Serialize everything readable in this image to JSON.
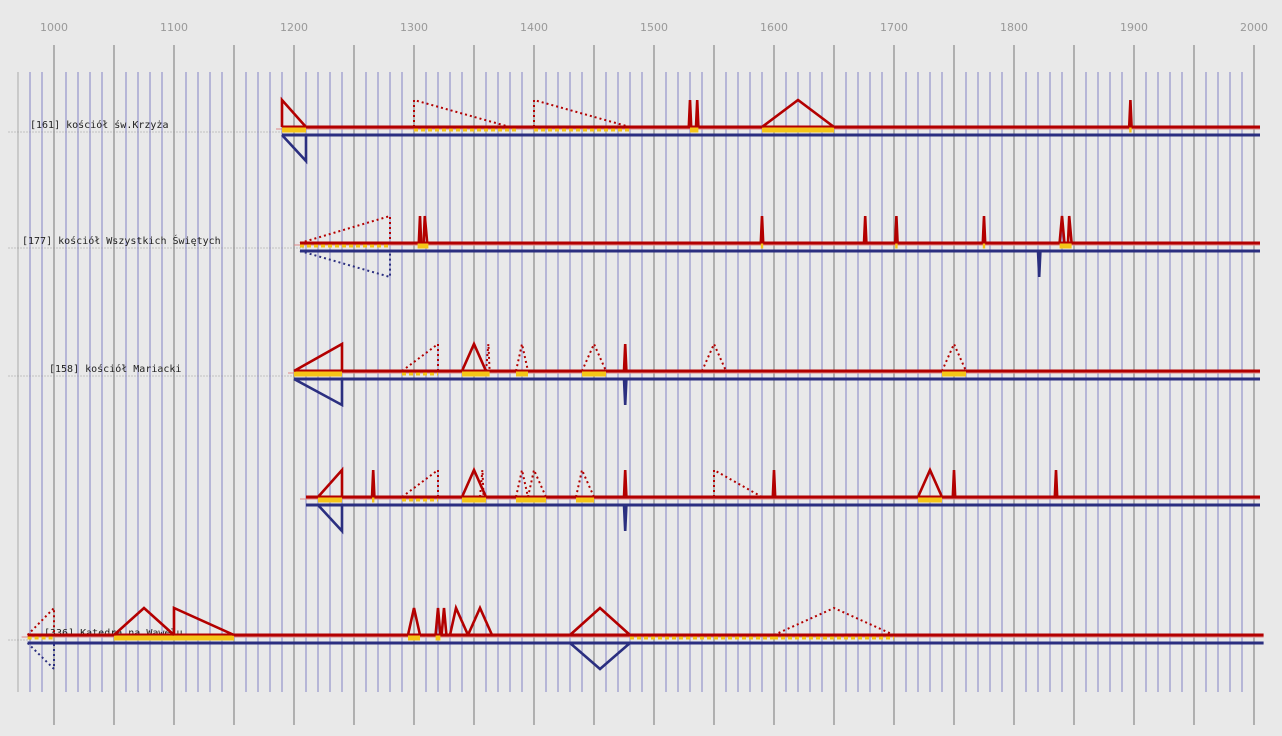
{
  "chart_data": {
    "type": "timeline",
    "x_axis": {
      "tick_labels": [
        "1000",
        "1100",
        "1200",
        "1300",
        "1400",
        "1500",
        "1600",
        "1700",
        "1800",
        "1900",
        "2000"
      ],
      "range": [
        975,
        2008
      ],
      "minor_tick_step": 10
    },
    "colors": {
      "background": "#e9e9e9",
      "upper_series": "#b30000",
      "lower_series": "#2b2f80",
      "fill_band": "#f5c518",
      "minor_grid": "#3333aa",
      "major_grid": "#666666"
    },
    "rows": [
      {
        "label": "[161] kościół św.Krzyża",
        "start": 1190,
        "end": 2005,
        "upper": [
          [
            1190,
            1190,
            1210
          ],
          [
            1300,
            1300,
            1380,
            "dotted"
          ],
          [
            1400,
            1400,
            1480,
            "dotted"
          ],
          [
            1529,
            1530,
            1531
          ],
          [
            1535,
            1536,
            1537
          ],
          [
            1590,
            1620,
            1650
          ],
          [
            1896,
            1897,
            1898
          ]
        ],
        "bands": [
          [
            1190,
            1210
          ],
          [
            1300,
            1385,
            "dotted"
          ],
          [
            1400,
            1480,
            "dotted"
          ],
          [
            1530,
            1537
          ],
          [
            1590,
            1650
          ],
          [
            1896,
            1898
          ]
        ],
        "lower": [
          [
            1190,
            1210,
            1210
          ]
        ]
      },
      {
        "label": "[177] kościół Wszystkich Świętych",
        "start": 1205,
        "end": 2005,
        "upper": [
          [
            1205,
            1280,
            1280,
            "dotted"
          ],
          [
            1304,
            1305,
            1306
          ],
          [
            1308,
            1309,
            1311
          ],
          [
            1589,
            1590,
            1591
          ],
          [
            1675,
            1676,
            1677
          ],
          [
            1701,
            1702,
            1703
          ],
          [
            1774,
            1775,
            1776
          ],
          [
            1838,
            1840,
            1842
          ],
          [
            1845,
            1846,
            1848
          ]
        ],
        "bands": [
          [
            1205,
            1280,
            "dotted"
          ],
          [
            1303,
            1312
          ],
          [
            1589,
            1591
          ],
          [
            1701,
            1703
          ],
          [
            1774,
            1776
          ],
          [
            1838,
            1848
          ]
        ],
        "lower": [
          [
            1205,
            1280,
            1280,
            "dotted"
          ],
          [
            1820,
            1821,
            1822
          ]
        ]
      },
      {
        "label": "[158] kościół Mariacki",
        "start": 1200,
        "end": 2005,
        "upper": [
          [
            1200,
            1240,
            1240
          ],
          [
            1290,
            1320,
            1320,
            "dotted"
          ],
          [
            1340,
            1350,
            1360
          ],
          [
            1360,
            1362,
            1363,
            "dotted"
          ],
          [
            1385,
            1390,
            1395,
            "dotted"
          ],
          [
            1440,
            1450,
            1460,
            "dotted"
          ],
          [
            1475,
            1476,
            1477
          ],
          [
            1540,
            1550,
            1560,
            "dotted"
          ],
          [
            1740,
            1750,
            1760,
            "dotted"
          ]
        ],
        "bands": [
          [
            1200,
            1240
          ],
          [
            1290,
            1320,
            "dotted"
          ],
          [
            1340,
            1363
          ],
          [
            1385,
            1395
          ],
          [
            1440,
            1460
          ],
          [
            1740,
            1760
          ]
        ],
        "lower": [
          [
            1200,
            1240,
            1240
          ],
          [
            1475,
            1476,
            1477
          ]
        ]
      },
      {
        "label": "",
        "start": 1210,
        "end": 2005,
        "upper": [
          [
            1220,
            1240,
            1240
          ],
          [
            1265,
            1266,
            1267
          ],
          [
            1290,
            1320,
            1320,
            "dotted"
          ],
          [
            1340,
            1350,
            1360
          ],
          [
            1355,
            1357,
            1358,
            "dotted"
          ],
          [
            1385,
            1390,
            1395,
            "dotted"
          ],
          [
            1395,
            1400,
            1410,
            "dotted"
          ],
          [
            1435,
            1440,
            1450,
            "dotted"
          ],
          [
            1475,
            1476,
            1477
          ],
          [
            1550,
            1550,
            1590,
            "dotted"
          ],
          [
            1599,
            1600,
            1601
          ],
          [
            1720,
            1730,
            1740
          ],
          [
            1749,
            1750,
            1751
          ],
          [
            1834,
            1835,
            1836
          ]
        ],
        "bands": [
          [
            1220,
            1240
          ],
          [
            1265,
            1267
          ],
          [
            1290,
            1320,
            "dotted"
          ],
          [
            1340,
            1360
          ],
          [
            1385,
            1410
          ],
          [
            1435,
            1450
          ],
          [
            1720,
            1740
          ]
        ],
        "lower": [
          [
            1220,
            1240,
            1240
          ],
          [
            1475,
            1476,
            1477
          ]
        ]
      },
      {
        "label": "[336] Katedra na Wawelu",
        "start": 978,
        "end": 2008,
        "upper": [
          [
            978,
            1000,
            1000,
            "dotted"
          ],
          [
            1050,
            1075,
            1100
          ],
          [
            1100,
            1100,
            1150
          ],
          [
            1295,
            1300,
            1305
          ],
          [
            1318,
            1320,
            1322
          ],
          [
            1323,
            1325,
            1327
          ],
          [
            1330,
            1335,
            1345
          ],
          [
            1345,
            1355,
            1365
          ],
          [
            1430,
            1455,
            1480
          ],
          [
            1600,
            1650,
            1700,
            "dotted"
          ]
        ],
        "bands": [
          [
            978,
            1000,
            "dotted"
          ],
          [
            1050,
            1150
          ],
          [
            1295,
            1305
          ],
          [
            1318,
            1322
          ],
          [
            1480,
            1600,
            "dotted"
          ],
          [
            1600,
            1700,
            "dotted"
          ]
        ],
        "lower": [
          [
            978,
            1000,
            1000,
            "dotted"
          ],
          [
            1430,
            1455,
            1480
          ]
        ]
      }
    ]
  }
}
